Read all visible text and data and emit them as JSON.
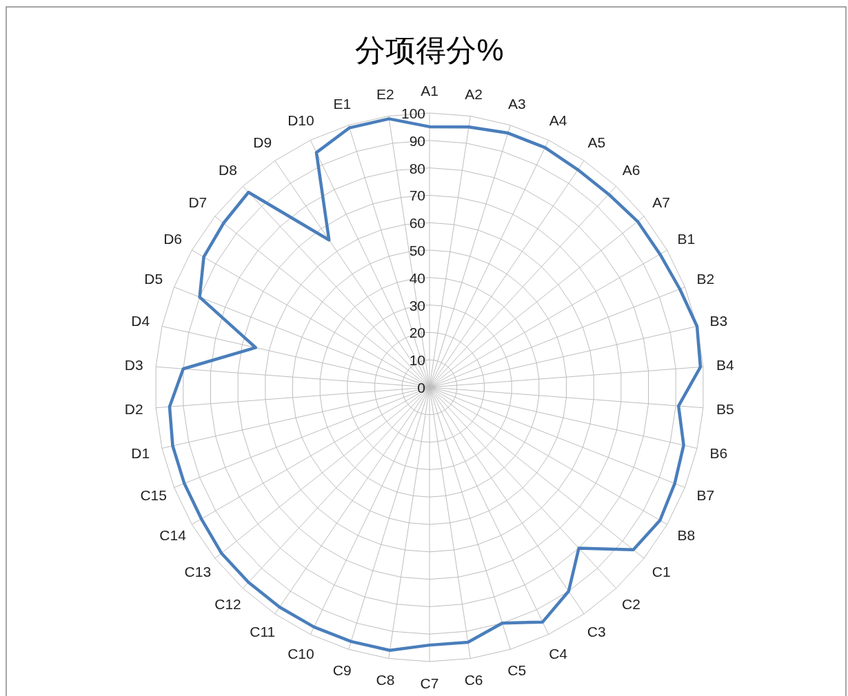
{
  "chart_data": {
    "type": "radar",
    "title": "分项得分%",
    "categories": [
      "A1",
      "A2",
      "A3",
      "A4",
      "A5",
      "A6",
      "A7",
      "B1",
      "B2",
      "B3",
      "B4",
      "B5",
      "B6",
      "B7",
      "B8",
      "C1",
      "C2",
      "C3",
      "C4",
      "C5",
      "C6",
      "C7",
      "C8",
      "C9",
      "C10",
      "C11",
      "C12",
      "C13",
      "C14",
      "C15",
      "D1",
      "D2",
      "D3",
      "D4",
      "D5",
      "D6",
      "D7",
      "D8",
      "D9",
      "D10",
      "E1",
      "E2"
    ],
    "series": [
      {
        "color": "#4a7ebb",
        "values": [
          95,
          96,
          97,
          97,
          96,
          96,
          97,
          97,
          98,
          100,
          99,
          91,
          95,
          96,
          97,
          95,
          80,
          90,
          95,
          90,
          94,
          94,
          97,
          97,
          97,
          97,
          97,
          97,
          96,
          96,
          96,
          95,
          90,
          65,
          90,
          95,
          96,
          97,
          65,
          95,
          99,
          99
        ]
      }
    ],
    "ylim": [
      0,
      100
    ],
    "yticks": [
      0,
      10,
      20,
      30,
      40,
      50,
      60,
      70,
      80,
      90,
      100
    ],
    "grid": true,
    "marker": "none",
    "line_style": "solid"
  }
}
